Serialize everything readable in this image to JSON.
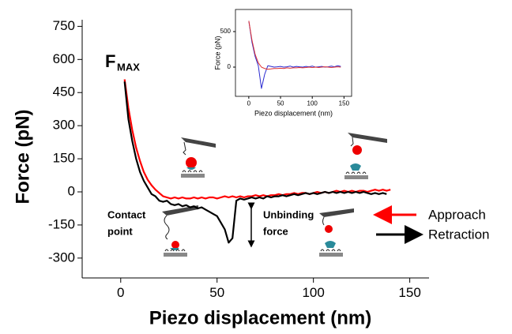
{
  "chart_data": [
    {
      "type": "line",
      "xlabel": "Piezo displacement (nm)",
      "ylabel": "Force (pN)",
      "xlim": [
        -20,
        160
      ],
      "ylim": [
        -390,
        780
      ],
      "xticks": [
        0,
        50,
        100,
        150
      ],
      "yticks": [
        -300,
        -150,
        0,
        150,
        300,
        450,
        600,
        750
      ],
      "x": [
        0,
        2,
        4,
        6,
        8,
        10,
        12,
        14,
        16,
        18,
        20,
        22,
        24,
        26,
        28,
        30,
        32,
        34,
        36,
        38,
        40,
        42,
        44,
        46,
        48,
        50,
        52,
        54,
        56,
        58,
        60,
        62,
        64,
        66,
        68,
        70,
        72,
        74,
        76,
        78,
        80,
        82,
        84,
        86,
        88,
        90,
        92,
        94,
        96,
        98,
        100,
        102,
        104,
        106,
        108,
        110,
        112,
        114,
        116,
        118,
        120,
        122,
        124,
        126,
        128,
        130,
        132,
        134,
        136,
        138,
        140
      ],
      "series": [
        {
          "name": "Approach",
          "color": "#ff0000",
          "values": [
            null,
            510,
            380,
            280,
            200,
            140,
            90,
            55,
            30,
            10,
            -5,
            -20,
            -25,
            -30,
            -25,
            -30,
            -25,
            -30,
            -30,
            -25,
            -30,
            -25,
            -30,
            -25,
            -25,
            -30,
            -25,
            -20,
            -25,
            -20,
            -25,
            -20,
            -25,
            -20,
            -20,
            -15,
            -20,
            -15,
            -20,
            -15,
            -15,
            -10,
            -15,
            -10,
            -10,
            -5,
            -10,
            -5,
            -5,
            -10,
            -5,
            0,
            -5,
            0,
            -5,
            0,
            5,
            0,
            5,
            0,
            5,
            0,
            5,
            5,
            0,
            5,
            10,
            5,
            10,
            5,
            10
          ]
        },
        {
          "name": "Retraction",
          "color": "#000000",
          "values": [
            null,
            500,
            330,
            230,
            150,
            90,
            50,
            20,
            -10,
            -20,
            -40,
            -45,
            -40,
            -55,
            -60,
            -55,
            -65,
            -60,
            -70,
            -65,
            -75,
            -70,
            -80,
            -90,
            -100,
            -110,
            -140,
            -170,
            -230,
            -210,
            -40,
            -30,
            -35,
            -30,
            -25,
            -30,
            -25,
            -30,
            -20,
            -25,
            -20,
            -20,
            -15,
            -20,
            -15,
            -10,
            -15,
            -10,
            -5,
            -10,
            -5,
            -10,
            -5,
            0,
            -5,
            0,
            -5,
            0,
            -5,
            0,
            -5,
            0,
            -5,
            0,
            -5,
            -10,
            -5,
            -10,
            -5,
            -10,
            null
          ]
        }
      ],
      "annotations": [
        {
          "text": "F",
          "subscript": "MAX"
        },
        {
          "lines": [
            "Contact",
            "point"
          ]
        },
        {
          "lines": [
            "Unbinding",
            "force"
          ]
        }
      ]
    },
    {
      "type": "line",
      "xlabel": "Piezo displacement (nm)",
      "ylabel": "Force (pN)",
      "xlim": [
        -21,
        162
      ],
      "ylim": [
        -411,
        811
      ],
      "xticks": [
        0,
        50,
        100,
        150
      ],
      "yticks": [
        0,
        500
      ],
      "x": [
        0,
        5,
        10,
        15,
        20,
        25,
        30,
        35,
        40,
        45,
        50,
        55,
        60,
        65,
        70,
        75,
        80,
        85,
        90,
        95,
        100,
        105,
        110,
        115,
        120,
        125,
        130,
        135,
        140,
        145
      ],
      "series": [
        {
          "color": "#2a2ad0",
          "values": [
            650,
            350,
            150,
            20,
            -300,
            -100,
            20,
            10,
            0,
            5,
            10,
            0,
            5,
            15,
            0,
            10,
            5,
            0,
            10,
            5,
            15,
            0,
            5,
            10,
            0,
            5,
            15,
            5,
            20,
            10
          ]
        },
        {
          "color": "#e03030",
          "values": [
            650,
            380,
            180,
            60,
            0,
            -20,
            -30,
            -25,
            -20,
            -20,
            -15,
            -20,
            -10,
            -15,
            -10,
            -10,
            -5,
            -10,
            -5,
            0,
            -5,
            0,
            -5,
            0,
            5,
            0,
            -5,
            0,
            5,
            0
          ]
        }
      ]
    }
  ]
}
